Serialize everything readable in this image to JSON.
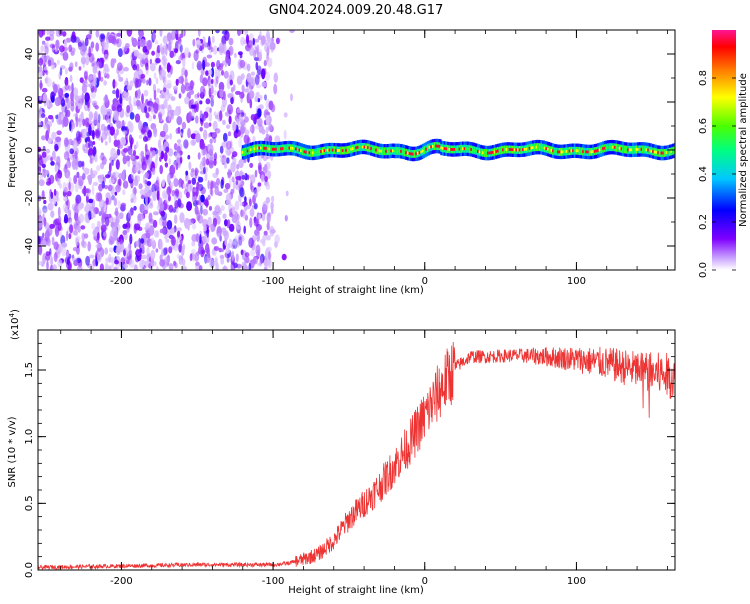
{
  "title": "GN04.2024.009.20.48.G17",
  "chart_data": [
    {
      "type": "heatmap",
      "xlabel": "Height of straight line (km)",
      "ylabel": "Frequency (Hz)",
      "xlim": [
        -255,
        165
      ],
      "ylim": [
        -50,
        50
      ],
      "x_ticks": [
        -200,
        -100,
        0,
        100
      ],
      "y_ticks": [
        -40,
        -20,
        0,
        20,
        40
      ],
      "description_of_structure": {
        "noise_region_x": [
          -255,
          -100
        ],
        "signal_region_x": [
          -120,
          165
        ],
        "signal_center_frequency": 0,
        "signal_halfwidth_hz": 3
      },
      "colorbar": {
        "label": "Normalized spectral amplitude",
        "range": [
          0.0,
          1.0
        ],
        "ticks": [
          0.0,
          0.2,
          0.4,
          0.6,
          0.8
        ],
        "tick_labels": [
          "0.0",
          "0.2",
          "0.4",
          "0.6",
          "0.8"
        ],
        "colors": [
          "#ffffff",
          "#c9a2ff",
          "#7f00ff",
          "#0000ff",
          "#00c8ff",
          "#00ff7f",
          "#4cff00",
          "#ffff00",
          "#ff7f00",
          "#ff0000",
          "#ff1493"
        ]
      }
    },
    {
      "type": "line",
      "xlabel": "Height of straight line (km)",
      "ylabel": "SNR (10 * v/v)",
      "y_multiplier": "(x10",
      "y_multiplier_exp": "4",
      "y_multiplier_close": ")",
      "xlim": [
        -255,
        165
      ],
      "ylim": [
        0,
        1.8
      ],
      "x_ticks": [
        -200,
        -100,
        0,
        100
      ],
      "y_ticks": [
        0.0,
        0.5,
        1.0,
        1.5
      ],
      "y_tick_labels": [
        "0.0",
        "0.5",
        "1.0",
        "1.5"
      ],
      "color": "#ee3333",
      "trend": {
        "x": [
          -255,
          -200,
          -150,
          -100,
          -90,
          -80,
          -70,
          -60,
          -50,
          -40,
          -30,
          -20,
          -10,
          0,
          10,
          20,
          30,
          40,
          60,
          80,
          100,
          120,
          140,
          165
        ],
        "y": [
          0.02,
          0.03,
          0.04,
          0.04,
          0.05,
          0.08,
          0.12,
          0.22,
          0.38,
          0.5,
          0.62,
          0.78,
          0.95,
          1.15,
          1.35,
          1.52,
          1.6,
          1.6,
          1.61,
          1.6,
          1.58,
          1.55,
          1.5,
          1.45
        ]
      }
    }
  ]
}
